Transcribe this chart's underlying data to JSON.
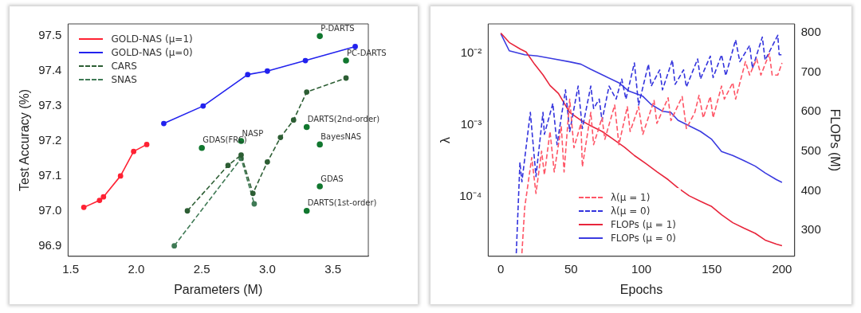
{
  "chart_data": [
    {
      "type": "line",
      "xlabel": "Parameters (M)",
      "ylabel": "Test Accuracy (%)",
      "xlim": [
        1.48,
        3.77
      ],
      "ylim": [
        96.87,
        97.535
      ],
      "xticks": [
        1.5,
        {
          "value": 2,
          "label": "2.0"
        },
        2.5,
        {
          "value": 3,
          "label": "3.0"
        },
        3.5
      ],
      "yticks": [
        96.9,
        {
          "value": 97,
          "label": "97.0"
        },
        97.1,
        97.2,
        97.3,
        97.4,
        97.5
      ],
      "legend": "top left",
      "series": [
        {
          "name": "GOLD-NAS (μ=1)",
          "color": "#ff2233",
          "line_style": "solid",
          "marker": "circle",
          "x": [
            1.6,
            1.72,
            1.75,
            1.88,
            1.98,
            2.08
          ],
          "values": [
            97.01,
            97.03,
            97.04,
            97.1,
            97.17,
            97.19
          ]
        },
        {
          "name": "GOLD-NAS (μ=0)",
          "color": "#2222ee",
          "line_style": "solid",
          "marker": "circle",
          "x": [
            2.21,
            2.51,
            2.85,
            3.0,
            3.29,
            3.67
          ],
          "values": [
            97.25,
            97.3,
            97.39,
            97.4,
            97.43,
            97.47
          ]
        },
        {
          "name": "CARS",
          "color": "#2d5e34",
          "line_style": "dashed",
          "marker": "circle",
          "x": [
            2.39,
            2.7,
            2.8,
            2.89,
            3.0,
            3.1,
            3.2,
            3.3,
            3.6
          ],
          "values": [
            97.0,
            97.13,
            97.16,
            97.05,
            97.14,
            97.21,
            97.26,
            97.34,
            97.38
          ]
        },
        {
          "name": "SNAS",
          "color": "#3f7a55",
          "line_style": "dashed",
          "marker": "circle",
          "x": [
            2.29,
            2.8,
            2.9
          ],
          "values": [
            96.9,
            97.15,
            97.02
          ]
        },
        {
          "type": "scatter",
          "color": "#11772f",
          "marker": "circle",
          "x": [
            3.4,
            3.6,
            3.3,
            3.4,
            3.4,
            3.3,
            2.8,
            2.5
          ],
          "values": [
            97.5,
            97.43,
            97.24,
            97.19,
            97.07,
            97.0,
            97.2,
            97.18
          ]
        }
      ],
      "annotations": [
        {
          "text": "P-DARTS",
          "x": 3.4,
          "y": 97.5
        },
        {
          "text": "PC-DARTS",
          "x": 3.6,
          "y": 97.43
        },
        {
          "text": "DARTS(2nd-order)",
          "x": 3.3,
          "y": 97.24
        },
        {
          "text": "BayesNAS",
          "x": 3.4,
          "y": 97.19
        },
        {
          "text": "GDAS",
          "x": 3.4,
          "y": 97.07
        },
        {
          "text": "DARTS(1st-order)",
          "x": 3.3,
          "y": 97.0
        },
        {
          "text": "NASP",
          "x": 2.8,
          "y": 97.2
        },
        {
          "text": "GDAS(FRC)",
          "x": 2.5,
          "y": 97.18
        }
      ]
    },
    {
      "type": "line",
      "xlabel": "Epochs",
      "ylabel": "λ",
      "y2label": "FLOPs (M)",
      "log": "y",
      "xlim": [
        -9,
        209
      ],
      "ylim": [
        1.45e-05,
        0.026
      ],
      "y2lim": [
        234,
        822
      ],
      "xticks": [
        0,
        50,
        100,
        150,
        200
      ],
      "yticks": [
        {
          "value": 0.0001,
          "label": "10⁻⁴"
        },
        {
          "value": 0.001,
          "label": "10⁻³"
        },
        {
          "value": 0.01,
          "label": "10⁻²"
        }
      ],
      "y2ticks": [
        300,
        400,
        500,
        600,
        700,
        800
      ],
      "legend": "bottom",
      "series": [
        {
          "name": "λ(μ = 1)",
          "color": "#ff5566",
          "line_style": "dashed",
          "x": [
            15,
            17,
            22,
            25,
            29,
            31,
            35,
            38,
            43,
            45,
            49,
            52,
            57,
            58,
            64,
            66,
            72,
            74,
            81,
            84,
            90,
            92,
            98,
            101,
            109,
            111,
            119,
            121,
            129,
            132,
            138,
            141,
            144,
            149,
            151,
            157,
            159,
            165,
            167,
            174,
            177,
            182,
            185,
            191,
            193,
            197,
            200
          ],
          "values": [
            1.6e-05,
            7e-05,
            0.00035,
            0.00011,
            0.00043,
            0.0002,
            0.00081,
            0.00022,
            0.00096,
            0.00022,
            0.0023,
            0.00048,
            0.00105,
            0.00026,
            0.0015,
            0.00053,
            0.00126,
            0.00063,
            0.0019,
            0.00053,
            0.0018,
            0.00081,
            0.0018,
            0.00074,
            0.0022,
            0.00105,
            0.0024,
            0.00115,
            0.0025,
            0.00089,
            0.0015,
            0.0026,
            0.00126,
            0.0025,
            0.00126,
            0.0035,
            0.0023,
            0.0039,
            0.0023,
            0.0077,
            0.005,
            0.0084,
            0.005,
            0.01,
            0.005,
            0.005,
            0.0074
          ]
        },
        {
          "name": "λ(μ = 0)",
          "color": "#3333dd",
          "line_style": "dashed",
          "x": [
            11,
            13.6,
            15,
            21,
            25,
            30,
            31,
            37,
            40,
            46,
            49,
            55,
            58,
            64,
            66,
            70,
            72,
            77,
            82,
            86,
            89,
            95,
            98,
            105,
            107,
            113,
            115,
            122,
            124,
            130,
            132,
            140,
            142,
            149,
            151,
            157,
            160,
            167,
            170,
            177,
            179,
            186,
            188,
            197,
            198,
            200
          ],
          "values": [
            1.6e-05,
            0.0003,
            0.00016,
            0.0015,
            0.00019,
            0.0015,
            0.00074,
            0.002,
            0.00053,
            0.0031,
            0.00081,
            0.0035,
            0.00089,
            0.0035,
            0.0017,
            0.0023,
            0.00115,
            0.0035,
            0.0023,
            0.0044,
            0.0023,
            0.0074,
            0.0019,
            0.0071,
            0.0035,
            0.0059,
            0.0031,
            0.0081,
            0.0037,
            0.0059,
            0.0034,
            0.0084,
            0.0044,
            0.0092,
            0.0046,
            0.0096,
            0.0049,
            0.0155,
            0.0077,
            0.013,
            0.0062,
            0.017,
            0.0081,
            0.018,
            0.0096,
            0.0096
          ]
        },
        {
          "name": "FLOPs (μ = 1)",
          "color": "#e8253b",
          "line_style": "solid",
          "axis": "y2",
          "x": [
            0,
            6,
            14,
            18,
            24,
            30,
            35,
            41,
            49,
            57,
            64,
            72,
            80,
            88,
            95,
            103,
            111,
            119,
            126,
            134,
            142,
            150,
            157,
            165,
            173,
            181,
            188,
            196,
            200
          ],
          "values": [
            799,
            775,
            758,
            751,
            720,
            693,
            666,
            646,
            598,
            578,
            564,
            550,
            530,
            510,
            489,
            469,
            448,
            428,
            407,
            387,
            373,
            360,
            339,
            319,
            305,
            292,
            275,
            265,
            261
          ]
        },
        {
          "name": "FLOPs (μ = 0)",
          "color": "#3b3be0",
          "line_style": "solid",
          "axis": "y2",
          "x": [
            0,
            6,
            17,
            26,
            37,
            49,
            57,
            64,
            74,
            84,
            91,
            101,
            107,
            115,
            121,
            126,
            134,
            142,
            150,
            157,
            165,
            173,
            181,
            188,
            196,
            200
          ],
          "values": [
            797,
            754,
            744,
            741,
            734,
            726,
            720,
            707,
            690,
            673,
            652,
            639,
            618,
            601,
            598,
            578,
            564,
            550,
            530,
            499,
            489,
            476,
            462,
            445,
            428,
            421
          ]
        }
      ]
    }
  ]
}
